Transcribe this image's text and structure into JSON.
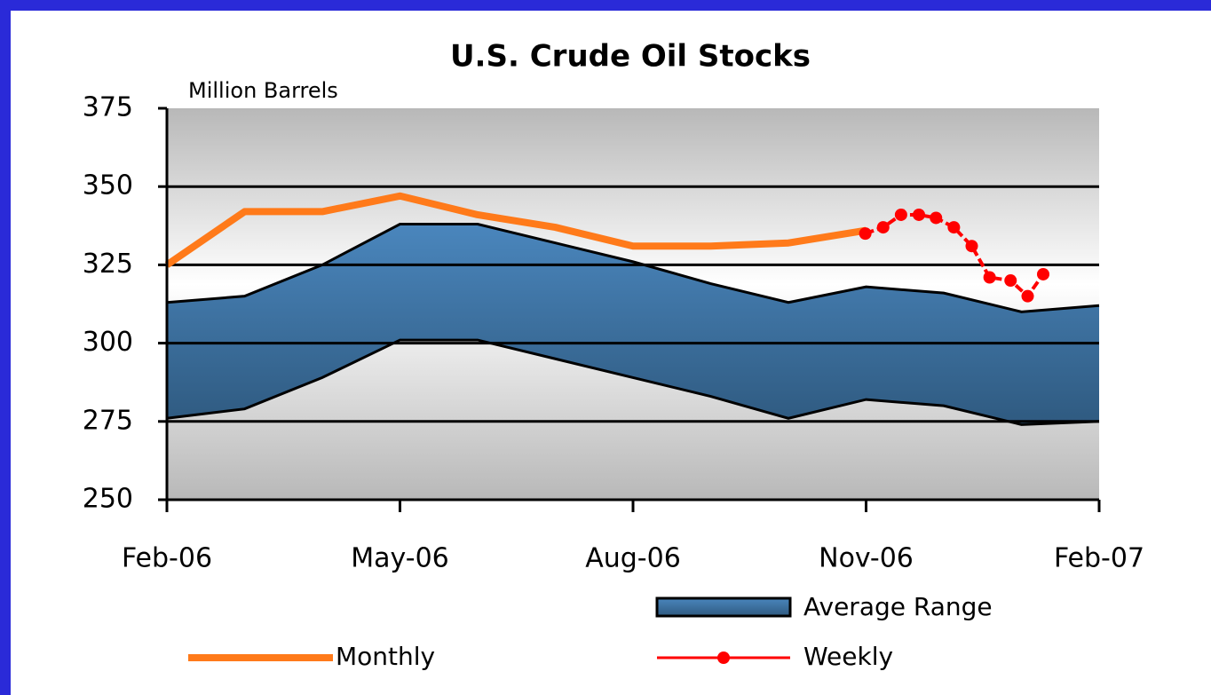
{
  "chart_data": {
    "type": "line",
    "title": "U.S. Crude Oil Stocks",
    "y_label": "Million Barrels",
    "xlim": [
      0,
      12
    ],
    "xticks": [
      {
        "value": 0,
        "label": "Feb-06"
      },
      {
        "value": 3,
        "label": "May-06"
      },
      {
        "value": 6,
        "label": "Aug-06"
      },
      {
        "value": 9,
        "label": "Nov-06"
      },
      {
        "value": 12,
        "label": "Feb-07"
      }
    ],
    "ylim": [
      250,
      375
    ],
    "yticks": [
      250,
      275,
      300,
      325,
      350,
      375
    ],
    "grid": true,
    "series": [
      {
        "name": "Average Range",
        "color": "#3d6e9c",
        "x": [
          0,
          1,
          2,
          3,
          4,
          5,
          6,
          7,
          8,
          9,
          10,
          11,
          12
        ],
        "upper": [
          313,
          315,
          325,
          338,
          338,
          332,
          326,
          319,
          313,
          318,
          316,
          310,
          312
        ],
        "lower": [
          276,
          279,
          289,
          301,
          301,
          295,
          289,
          283,
          276,
          282,
          280,
          274,
          275
        ]
      },
      {
        "name": "Monthly",
        "color": "#ff7a1a",
        "x": [
          0,
          1,
          2,
          3,
          4,
          5,
          6,
          7,
          8,
          9
        ],
        "values": [
          325,
          342,
          342,
          347,
          341,
          337,
          331,
          331,
          332,
          336
        ]
      },
      {
        "name": "Weekly",
        "color": "#ff0000",
        "x": [
          8.99,
          9.22,
          9.45,
          9.68,
          9.9,
          10.13,
          10.36,
          10.59,
          10.86,
          11.08,
          11.28
        ],
        "values": [
          335,
          337,
          341,
          341,
          340,
          337,
          331,
          321,
          320,
          315,
          322
        ]
      }
    ]
  }
}
